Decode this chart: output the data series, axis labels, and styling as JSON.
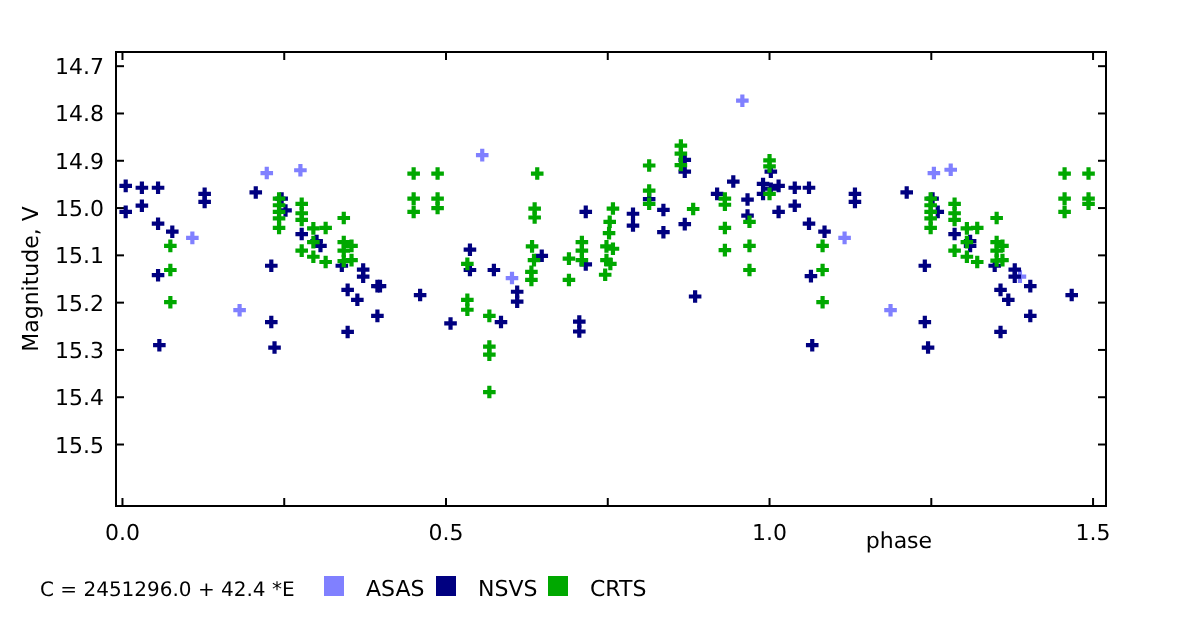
{
  "chart_data": {
    "type": "scatter",
    "xlabel": "phase",
    "ylabel": "Magnitude, V",
    "annotations": [
      "C = 2451296.0 + 42.4 *E"
    ],
    "xlim": [
      -0.01,
      1.52
    ],
    "ylim": [
      15.63,
      14.67
    ],
    "xticks": [
      {
        "value": 0,
        "label": "0.0"
      },
      {
        "value": 0.25,
        "label": null
      },
      {
        "value": 0.5,
        "label": "0.5"
      },
      {
        "value": 0.75,
        "label": null
      },
      {
        "value": 1,
        "label": "1.0"
      },
      {
        "value": 1.25,
        "label": null
      },
      {
        "value": 1.5,
        "label": "1.5"
      }
    ],
    "yticks": [
      14.7,
      14.8,
      14.9,
      {
        "value": 15,
        "label": "15.0"
      },
      15.1,
      15.2,
      15.3,
      15.4,
      15.5
    ],
    "grid": false,
    "legend": "bottom",
    "marker": "cross",
    "series": [
      {
        "name": "ASAS",
        "color": "#8080ff",
        "x": [
          0.108,
          0.181,
          0.275,
          0.223,
          0.602,
          0.556,
          0.958,
          1.116,
          1.187,
          1.28,
          1.254,
          1.387
        ],
        "values": [
          15.063,
          15.216,
          14.92,
          14.926,
          15.148,
          14.888,
          14.773,
          15.063,
          15.216,
          14.919,
          14.926,
          15.145
        ]
      },
      {
        "name": "NSVS",
        "color": "#000080",
        "x": [
          0.005,
          0.005,
          0.03,
          0.03,
          0.055,
          0.055,
          0.077,
          0.055,
          0.057,
          0.127,
          0.127,
          0.206,
          0.23,
          0.23,
          0.235,
          0.246,
          0.252,
          0.277,
          0.3,
          0.306,
          0.339,
          0.348,
          0.348,
          0.363,
          0.372,
          0.372,
          0.394,
          0.394,
          0.398,
          0.46,
          0.507,
          0.537,
          0.537,
          0.574,
          0.61,
          0.61,
          0.585,
          0.648,
          0.716,
          0.716,
          0.706,
          0.706,
          0.789,
          0.789,
          0.814,
          0.836,
          0.836,
          0.869,
          0.869,
          0.869,
          0.885,
          0.919,
          0.944,
          0.966,
          0.966,
          0.99,
          0.99,
          1.002,
          1.002,
          1.014,
          1.014,
          1.039,
          1.039,
          1.061,
          1.061,
          1.085,
          1.064,
          1.066,
          1.132,
          1.132,
          1.212,
          1.24,
          1.24,
          1.245,
          1.252,
          1.26,
          1.286,
          1.31,
          1.31,
          1.348,
          1.357,
          1.357,
          1.369,
          1.379,
          1.379,
          1.403,
          1.403,
          1.467
        ],
        "values": [
          14.953,
          15.008,
          14.957,
          14.995,
          14.957,
          15.033,
          15.05,
          15.142,
          15.29,
          14.97,
          14.987,
          14.967,
          15.122,
          15.241,
          15.295,
          14.98,
          15.005,
          15.055,
          15.07,
          15.08,
          15.122,
          15.173,
          15.262,
          15.194,
          15.13,
          15.145,
          15.165,
          15.228,
          15.165,
          15.184,
          15.244,
          15.088,
          15.131,
          15.131,
          15.177,
          15.198,
          15.241,
          15.101,
          15.008,
          15.119,
          15.24,
          15.261,
          15.012,
          15.037,
          14.981,
          15.004,
          15.051,
          14.898,
          14.923,
          15.034,
          15.187,
          14.97,
          14.944,
          14.982,
          15.016,
          14.949,
          14.97,
          14.923,
          14.959,
          14.953,
          15.008,
          14.957,
          14.995,
          14.957,
          15.033,
          15.05,
          15.144,
          15.29,
          14.97,
          14.987,
          14.967,
          15.122,
          15.241,
          15.295,
          14.98,
          15.008,
          15.055,
          15.07,
          15.08,
          15.122,
          15.173,
          15.262,
          15.194,
          15.13,
          15.145,
          15.165,
          15.228,
          15.184
        ]
      },
      {
        "name": "CRTS",
        "color": "#00a800",
        "x": [
          0.074,
          0.074,
          0.074,
          0.242,
          0.242,
          0.242,
          0.242,
          0.242,
          0.277,
          0.277,
          0.277,
          0.277,
          0.295,
          0.295,
          0.295,
          0.314,
          0.314,
          0.342,
          0.342,
          0.342,
          0.342,
          0.354,
          0.354,
          0.45,
          0.45,
          0.45,
          0.487,
          0.487,
          0.487,
          0.533,
          0.533,
          0.533,
          0.567,
          0.567,
          0.567,
          0.567,
          0.641,
          0.637,
          0.637,
          0.633,
          0.636,
          0.632,
          0.632,
          0.69,
          0.69,
          0.71,
          0.71,
          0.71,
          0.758,
          0.753,
          0.752,
          0.748,
          0.758,
          0.748,
          0.754,
          0.746,
          0.814,
          0.814,
          0.814,
          0.863,
          0.863,
          0.863,
          0.882,
          0.931,
          0.931,
          0.931,
          0.931,
          0.969,
          0.969,
          0.969,
          1.0,
          1.0,
          1.0,
          1.082,
          1.082,
          1.082,
          1.249,
          1.249,
          1.249,
          1.249,
          1.249,
          1.286,
          1.286,
          1.286,
          1.286,
          1.305,
          1.305,
          1.305,
          1.321,
          1.321,
          1.351,
          1.351,
          1.351,
          1.351,
          1.36,
          1.36,
          1.456,
          1.456,
          1.456,
          1.493,
          1.493,
          1.493
        ],
        "values": [
          15.08,
          15.131,
          15.199,
          14.98,
          14.994,
          15.008,
          15.022,
          15.042,
          14.991,
          15.011,
          15.025,
          15.09,
          15.043,
          15.072,
          15.103,
          15.042,
          15.114,
          15.021,
          15.072,
          15.09,
          15.112,
          15.08,
          15.11,
          14.927,
          14.98,
          15.008,
          14.927,
          14.98,
          15.0,
          15.118,
          15.194,
          15.215,
          15.228,
          15.293,
          15.31,
          15.389,
          14.927,
          15.001,
          15.02,
          15.081,
          15.11,
          15.135,
          15.152,
          15.107,
          15.152,
          15.072,
          15.09,
          15.11,
          15.001,
          15.029,
          15.053,
          15.081,
          15.086,
          15.11,
          15.118,
          15.141,
          14.91,
          14.963,
          14.991,
          14.868,
          14.885,
          14.909,
          15.002,
          14.98,
          14.993,
          15.042,
          15.089,
          15.029,
          15.08,
          15.131,
          14.899,
          14.912,
          14.97,
          15.08,
          15.131,
          15.199,
          14.98,
          14.994,
          15.008,
          15.022,
          15.042,
          14.991,
          15.011,
          15.025,
          15.09,
          15.043,
          15.072,
          15.103,
          15.042,
          15.114,
          15.021,
          15.072,
          15.09,
          15.111,
          15.08,
          15.11,
          14.927,
          14.98,
          15.008,
          14.927,
          14.98,
          14.991
        ]
      }
    ]
  }
}
